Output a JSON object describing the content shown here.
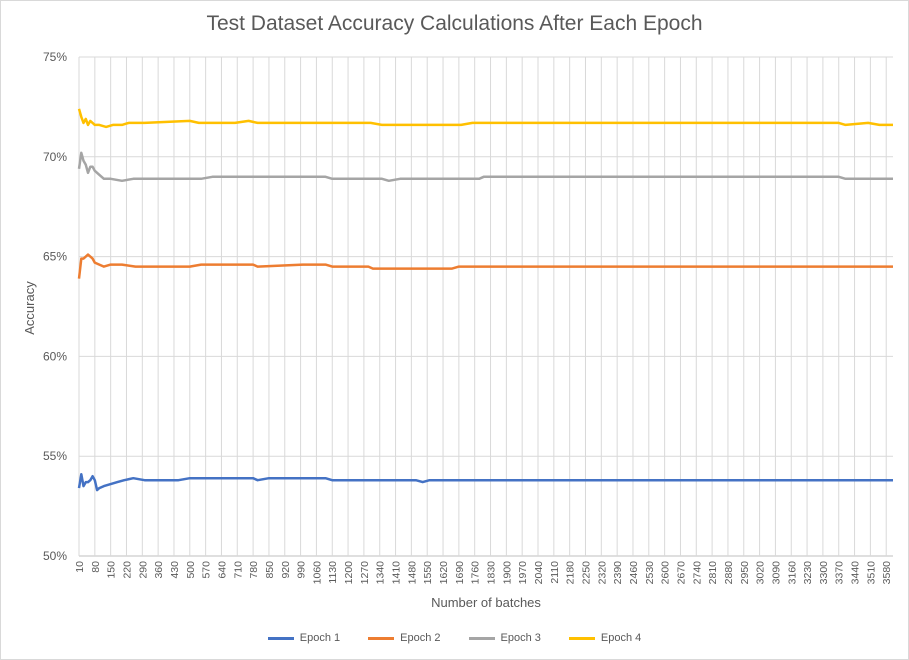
{
  "chart_data": {
    "type": "line",
    "title": "Test Dataset Accuracy Calculations After Each Epoch",
    "xlabel": "Number of batches",
    "ylabel": "Accuracy",
    "ylim": [
      0.5,
      0.75
    ],
    "y_ticks": [
      "50%",
      "55%",
      "60%",
      "65%",
      "70%",
      "75%"
    ],
    "x_range": [
      10,
      3610
    ],
    "x_ticks": [
      10,
      80,
      150,
      220,
      290,
      360,
      430,
      500,
      570,
      640,
      710,
      780,
      850,
      920,
      990,
      1060,
      1130,
      1200,
      1270,
      1340,
      1410,
      1480,
      1550,
      1620,
      1690,
      1760,
      1830,
      1900,
      1970,
      2040,
      2110,
      2180,
      2250,
      2320,
      2390,
      2460,
      2530,
      2600,
      2670,
      2740,
      2810,
      2880,
      2950,
      3020,
      3090,
      3160,
      3230,
      3300,
      3370,
      3440,
      3510,
      3580
    ],
    "grid": true,
    "legend_position": "bottom",
    "series": [
      {
        "name": "Epoch 1",
        "color": "#4472C4",
        "points": [
          [
            10,
            0.534
          ],
          [
            20,
            0.541
          ],
          [
            30,
            0.535
          ],
          [
            40,
            0.537
          ],
          [
            50,
            0.537
          ],
          [
            60,
            0.538
          ],
          [
            70,
            0.54
          ],
          [
            80,
            0.538
          ],
          [
            90,
            0.533
          ],
          [
            100,
            0.534
          ],
          [
            120,
            0.535
          ],
          [
            150,
            0.536
          ],
          [
            180,
            0.537
          ],
          [
            210,
            0.538
          ],
          [
            250,
            0.539
          ],
          [
            300,
            0.538
          ],
          [
            450,
            0.538
          ],
          [
            500,
            0.539
          ],
          [
            780,
            0.539
          ],
          [
            800,
            0.538
          ],
          [
            850,
            0.539
          ],
          [
            1100,
            0.539
          ],
          [
            1130,
            0.538
          ],
          [
            1500,
            0.538
          ],
          [
            1530,
            0.537
          ],
          [
            1560,
            0.538
          ],
          [
            3610,
            0.538
          ]
        ]
      },
      {
        "name": "Epoch 2",
        "color": "#ED7D31",
        "points": [
          [
            10,
            0.639
          ],
          [
            20,
            0.649
          ],
          [
            30,
            0.649
          ],
          [
            40,
            0.65
          ],
          [
            50,
            0.651
          ],
          [
            60,
            0.65
          ],
          [
            70,
            0.649
          ],
          [
            80,
            0.647
          ],
          [
            100,
            0.646
          ],
          [
            120,
            0.645
          ],
          [
            150,
            0.646
          ],
          [
            200,
            0.646
          ],
          [
            260,
            0.645
          ],
          [
            300,
            0.645
          ],
          [
            500,
            0.645
          ],
          [
            550,
            0.646
          ],
          [
            780,
            0.646
          ],
          [
            800,
            0.645
          ],
          [
            1000,
            0.646
          ],
          [
            1100,
            0.646
          ],
          [
            1130,
            0.645
          ],
          [
            1290,
            0.645
          ],
          [
            1310,
            0.644
          ],
          [
            1660,
            0.644
          ],
          [
            1690,
            0.645
          ],
          [
            3610,
            0.645
          ]
        ]
      },
      {
        "name": "Epoch 3",
        "color": "#A5A5A5",
        "points": [
          [
            10,
            0.694
          ],
          [
            20,
            0.702
          ],
          [
            30,
            0.698
          ],
          [
            40,
            0.696
          ],
          [
            50,
            0.692
          ],
          [
            60,
            0.695
          ],
          [
            70,
            0.695
          ],
          [
            80,
            0.693
          ],
          [
            100,
            0.691
          ],
          [
            120,
            0.689
          ],
          [
            150,
            0.689
          ],
          [
            200,
            0.688
          ],
          [
            250,
            0.689
          ],
          [
            300,
            0.689
          ],
          [
            500,
            0.689
          ],
          [
            550,
            0.689
          ],
          [
            600,
            0.69
          ],
          [
            1100,
            0.69
          ],
          [
            1130,
            0.689
          ],
          [
            1350,
            0.689
          ],
          [
            1380,
            0.688
          ],
          [
            1430,
            0.689
          ],
          [
            1780,
            0.689
          ],
          [
            1800,
            0.69
          ],
          [
            3370,
            0.69
          ],
          [
            3400,
            0.689
          ],
          [
            3610,
            0.689
          ]
        ]
      },
      {
        "name": "Epoch 4",
        "color": "#FFC000",
        "points": [
          [
            10,
            0.724
          ],
          [
            20,
            0.72
          ],
          [
            30,
            0.717
          ],
          [
            40,
            0.719
          ],
          [
            50,
            0.716
          ],
          [
            60,
            0.718
          ],
          [
            70,
            0.717
          ],
          [
            80,
            0.716
          ],
          [
            100,
            0.716
          ],
          [
            130,
            0.715
          ],
          [
            160,
            0.716
          ],
          [
            200,
            0.716
          ],
          [
            230,
            0.717
          ],
          [
            300,
            0.717
          ],
          [
            500,
            0.718
          ],
          [
            540,
            0.717
          ],
          [
            700,
            0.717
          ],
          [
            760,
            0.718
          ],
          [
            800,
            0.717
          ],
          [
            1300,
            0.717
          ],
          [
            1350,
            0.716
          ],
          [
            1700,
            0.716
          ],
          [
            1750,
            0.717
          ],
          [
            3370,
            0.717
          ],
          [
            3400,
            0.716
          ],
          [
            3500,
            0.717
          ],
          [
            3550,
            0.716
          ],
          [
            3610,
            0.716
          ]
        ]
      }
    ]
  }
}
